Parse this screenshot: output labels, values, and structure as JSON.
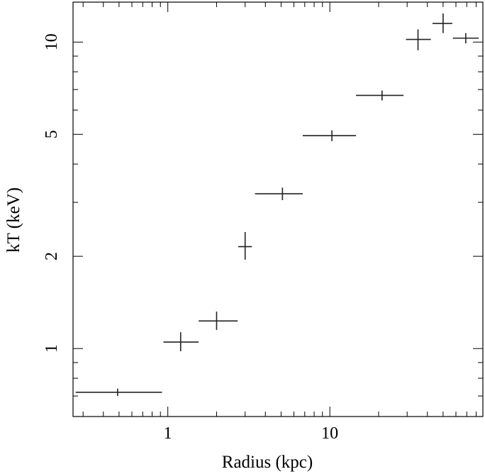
{
  "chart_data": {
    "type": "scatter",
    "title": "",
    "xlabel": "Radius (kpc)",
    "ylabel": "kT (keV)",
    "xscale": "log",
    "yscale": "log",
    "xlim": [
      0.26,
      88
    ],
    "ylim": [
      0.6,
      13.5
    ],
    "xticks": [
      {
        "value": 1,
        "label": "1"
      },
      {
        "value": 10,
        "label": "10"
      }
    ],
    "yticks": [
      {
        "value": 1,
        "label": "1"
      },
      {
        "value": 2,
        "label": "2"
      },
      {
        "value": 5,
        "label": "5"
      },
      {
        "value": 10,
        "label": "10"
      }
    ],
    "grid": false,
    "legend": "none",
    "series": [
      {
        "points": [
          {
            "x": 0.49,
            "x_lo": 0.27,
            "x_hi": 0.92,
            "y": 0.72,
            "y_lo": 0.7,
            "y_hi": 0.74
          },
          {
            "x": 1.2,
            "x_lo": 0.94,
            "x_hi": 1.55,
            "y": 1.05,
            "y_lo": 0.98,
            "y_hi": 1.13
          },
          {
            "x": 2.0,
            "x_lo": 1.55,
            "x_hi": 2.7,
            "y": 1.23,
            "y_lo": 1.15,
            "y_hi": 1.32
          },
          {
            "x": 3.0,
            "x_lo": 2.72,
            "x_hi": 3.3,
            "y": 2.15,
            "y_lo": 1.95,
            "y_hi": 2.4
          },
          {
            "x": 5.1,
            "x_lo": 3.45,
            "x_hi": 6.8,
            "y": 3.2,
            "y_lo": 3.05,
            "y_hi": 3.35
          },
          {
            "x": 10.3,
            "x_lo": 6.8,
            "x_hi": 14.5,
            "y": 4.95,
            "y_lo": 4.75,
            "y_hi": 5.15
          },
          {
            "x": 21.0,
            "x_lo": 14.5,
            "x_hi": 28.5,
            "y": 6.7,
            "y_lo": 6.45,
            "y_hi": 6.95
          },
          {
            "x": 35.0,
            "x_lo": 29.5,
            "x_hi": 42.0,
            "y": 10.2,
            "y_lo": 9.4,
            "y_hi": 11.0
          },
          {
            "x": 50.0,
            "x_lo": 43.0,
            "x_hi": 57.0,
            "y": 11.5,
            "y_lo": 10.7,
            "y_hi": 12.4
          },
          {
            "x": 69.0,
            "x_lo": 57.5,
            "x_hi": 83.0,
            "y": 10.3,
            "y_lo": 9.9,
            "y_hi": 10.7
          }
        ]
      }
    ]
  },
  "style": {
    "line_color": "#000000",
    "data_color": "#222222",
    "background": "#ffffff"
  }
}
